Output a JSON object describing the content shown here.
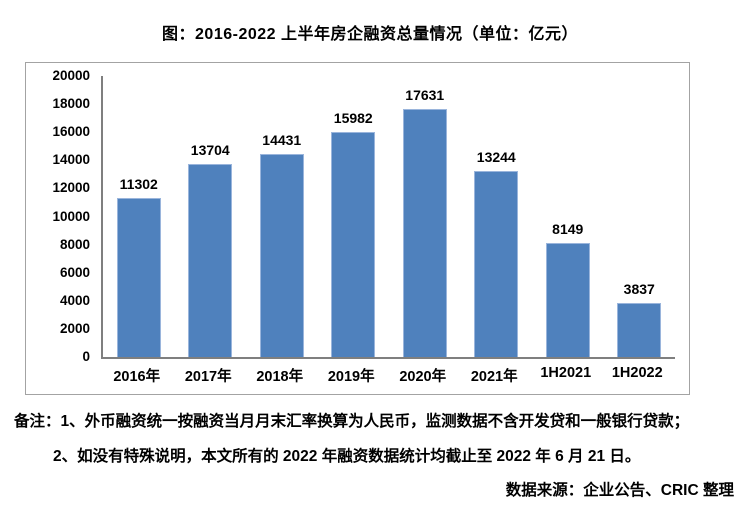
{
  "title": "图：2016-2022 上半年房企融资总量情况（单位：亿元）",
  "chart_data": {
    "type": "bar",
    "title": "图：2016-2022 上半年房企融资总量情况（单位：亿元）",
    "categories": [
      "2016年",
      "2017年",
      "2018年",
      "2019年",
      "2020年",
      "2021年",
      "1H2021",
      "1H2022"
    ],
    "values": [
      11302,
      13704,
      14431,
      15982,
      17631,
      13244,
      8149,
      3837
    ],
    "xlabel": "",
    "ylabel": "",
    "ylim": [
      0,
      20000
    ],
    "ytick_step": 2000,
    "grid": false,
    "legend": false,
    "bar_color": "#4f81bd",
    "bar_border_color": "#9ab5dc",
    "axis_color": "#7f7f7f",
    "value_labels": true
  },
  "notes": {
    "line1": "备注：1、外币融资统一按融资当月月末汇率换算为人民币，监测数据不含开发贷和一般银行贷款；",
    "line2": "2、如没有特殊说明，本文所有的 2022 年融资数据统计均截止至 2022 年 6 月 21 日。",
    "source": "数据来源：企业公告、CRIC 整理"
  }
}
